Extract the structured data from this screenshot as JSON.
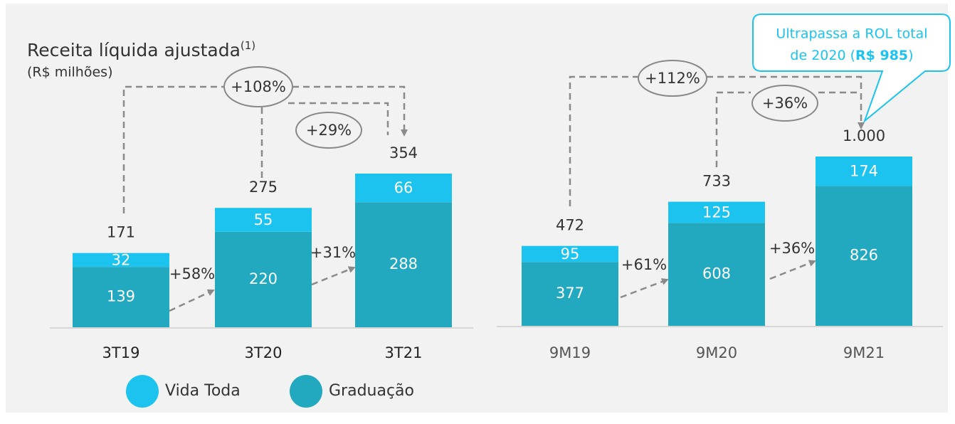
{
  "chart_data": [
    {
      "type": "stacked_bar",
      "title": "Receita líquida ajustada",
      "title_note": "(1)",
      "subtitle": "(R$ milhões)",
      "categories": [
        "3T19",
        "3T20",
        "3T21"
      ],
      "series": [
        {
          "name": "Graduação",
          "color": "#22a9c0",
          "values": [
            139,
            220,
            288
          ]
        },
        {
          "name": "Vida Toda",
          "color": "#1cc3ee",
          "values": [
            32,
            55,
            66
          ]
        }
      ],
      "totals": [
        171,
        275,
        354
      ],
      "growth": [
        "+58%",
        "+31%"
      ],
      "brackets": [
        "+108%",
        "+29%"
      ]
    },
    {
      "type": "stacked_bar",
      "categories": [
        "9M19",
        "9M20",
        "9M21"
      ],
      "series": [
        {
          "name": "Graduação",
          "color": "#22a9c0",
          "values": [
            377,
            608,
            826
          ]
        },
        {
          "name": "Vida Toda",
          "color": "#1cc3ee",
          "values": [
            95,
            125,
            174
          ]
        }
      ],
      "totals": [
        472,
        733,
        {
          "value": 1000,
          "label": "1.000"
        }
      ],
      "growth": [
        "+61%",
        "+36%"
      ],
      "brackets": [
        "+112%",
        "+36%"
      ],
      "callout": {
        "line1": "Ultrapassa a ROL total",
        "pre": "de 2020 (",
        "bold": "R$ 985",
        "post": ")"
      }
    }
  ]
}
